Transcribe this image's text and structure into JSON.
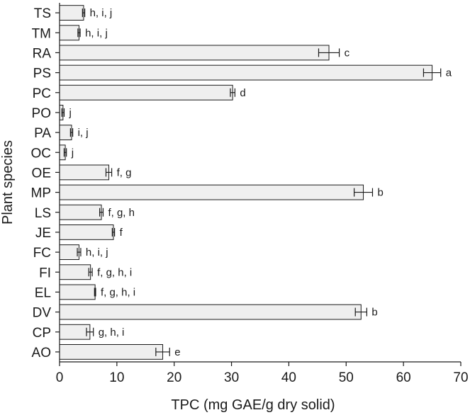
{
  "chart_data": {
    "type": "bar",
    "orientation": "horizontal",
    "title": "",
    "xlabel": "TPC (mg GAE/g dry solid)",
    "ylabel": "Plant species",
    "xlim": [
      0,
      70
    ],
    "xticks": [
      0,
      10,
      20,
      30,
      40,
      50,
      60,
      70
    ],
    "grid": false,
    "bar_color": "#efefef",
    "edge_color": "#1a1a1a",
    "categories": [
      "TS",
      "TM",
      "RA",
      "PS",
      "PC",
      "PO",
      "PA",
      "OC",
      "OE",
      "MP",
      "LS",
      "JE",
      "FC",
      "FI",
      "EL",
      "DV",
      "CP",
      "AO"
    ],
    "values": [
      4.2,
      3.4,
      47.0,
      65.0,
      30.2,
      0.6,
      2.1,
      1.0,
      8.6,
      53.0,
      7.3,
      9.4,
      3.4,
      5.4,
      6.2,
      52.6,
      5.3,
      18.0
    ],
    "errors": [
      0.2,
      0.2,
      1.8,
      1.5,
      0.4,
      0.2,
      0.2,
      0.2,
      0.5,
      1.6,
      0.3,
      0.2,
      0.3,
      0.3,
      0.1,
      1.0,
      0.6,
      1.2
    ],
    "significance_labels": [
      "h, i, j",
      "h, i, j",
      "c",
      "a",
      "d",
      "j",
      "i, j",
      "j",
      "f, g",
      "b",
      "f, g, h",
      "f",
      "h, i, j",
      "f, g, h, i",
      "f, g, h, i",
      "b",
      "g, h, i",
      "e"
    ]
  }
}
